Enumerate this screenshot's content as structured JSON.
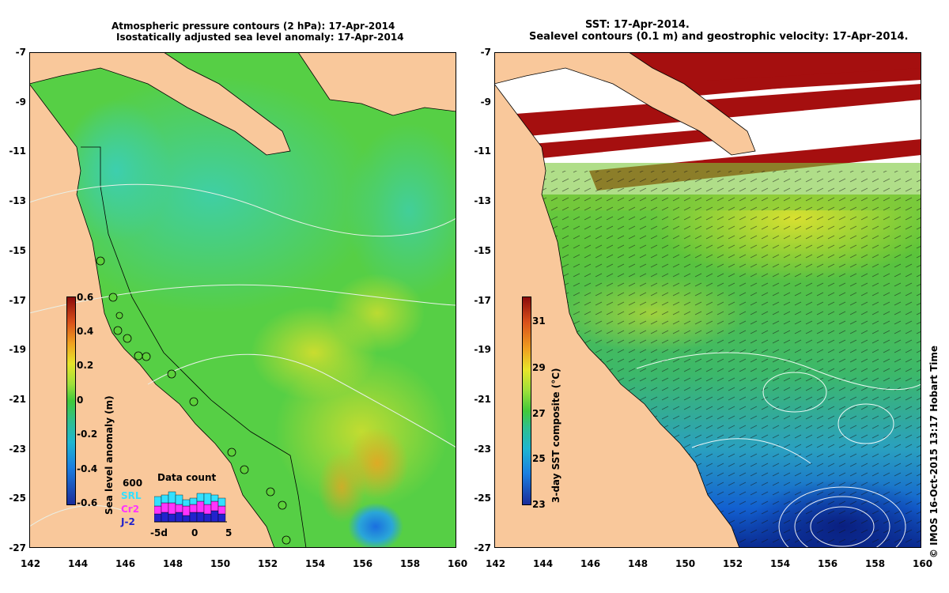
{
  "left_map": {
    "title_line1": "Atmospheric pressure contours (2 hPa): 17-Apr-2014",
    "title_line2": "Isostatically adjusted sea level anomaly: 17-Apr-2014",
    "colorbar": {
      "label": "Sea level anomaly (m)",
      "ticks": [
        "0.6",
        "0.4",
        "0.2",
        "0",
        "-0.2",
        "-0.4",
        "-0.6"
      ],
      "range": [
        -0.6,
        0.6
      ]
    },
    "inset": {
      "title": "Data count",
      "ymax_label": "600",
      "legend": [
        {
          "label": "SRL",
          "color": "#33e0ff"
        },
        {
          "label": "Cr2",
          "color": "#ff33ff"
        },
        {
          "label": "J-2",
          "color": "#2222cc"
        }
      ],
      "x_ticks": [
        "-5d",
        "0",
        "5"
      ],
      "bars": [
        {
          "j2": 0.25,
          "cr2": 0.25,
          "srl": 0.3
        },
        {
          "j2": 0.3,
          "cr2": 0.3,
          "srl": 0.25
        },
        {
          "j2": 0.25,
          "cr2": 0.35,
          "srl": 0.35
        },
        {
          "j2": 0.3,
          "cr2": 0.25,
          "srl": 0.3
        },
        {
          "j2": 0.2,
          "cr2": 0.3,
          "srl": 0.2
        },
        {
          "j2": 0.3,
          "cr2": 0.25,
          "srl": 0.2
        },
        {
          "j2": 0.3,
          "cr2": 0.35,
          "srl": 0.25
        },
        {
          "j2": 0.25,
          "cr2": 0.3,
          "srl": 0.35
        },
        {
          "j2": 0.35,
          "cr2": 0.3,
          "srl": 0.2
        },
        {
          "j2": 0.25,
          "cr2": 0.25,
          "srl": 0.25
        }
      ]
    }
  },
  "right_map": {
    "title_line1": "SST: 17-Apr-2014.",
    "title_line2": "Sealevel contours (0.1 m) and geostrophic velocity: 17-Apr-2014.",
    "colorbar": {
      "label": "3-day SST composite (°C)",
      "ticks": [
        "31",
        "29",
        "27",
        "25",
        "23"
      ],
      "range": [
        23,
        32
      ]
    }
  },
  "axes": {
    "lat_ticks": [
      "-7",
      "-9",
      "-11",
      "-13",
      "-15",
      "-17",
      "-19",
      "-21",
      "-23",
      "-25",
      "-27"
    ],
    "lon_ticks": [
      "142",
      "144",
      "146",
      "148",
      "150",
      "152",
      "154",
      "156",
      "158",
      "160"
    ]
  },
  "credit": "© IMOS 16-Oct-2015 13:17 Hobart Time",
  "colors": {
    "land": "#f9c89b",
    "ocean_green": "#5cd23a",
    "anomaly_teal": "#2fc987",
    "cloud": "#ffffff",
    "warm_red": "#a50f0f",
    "cool_blue": "#0b5fcf"
  }
}
